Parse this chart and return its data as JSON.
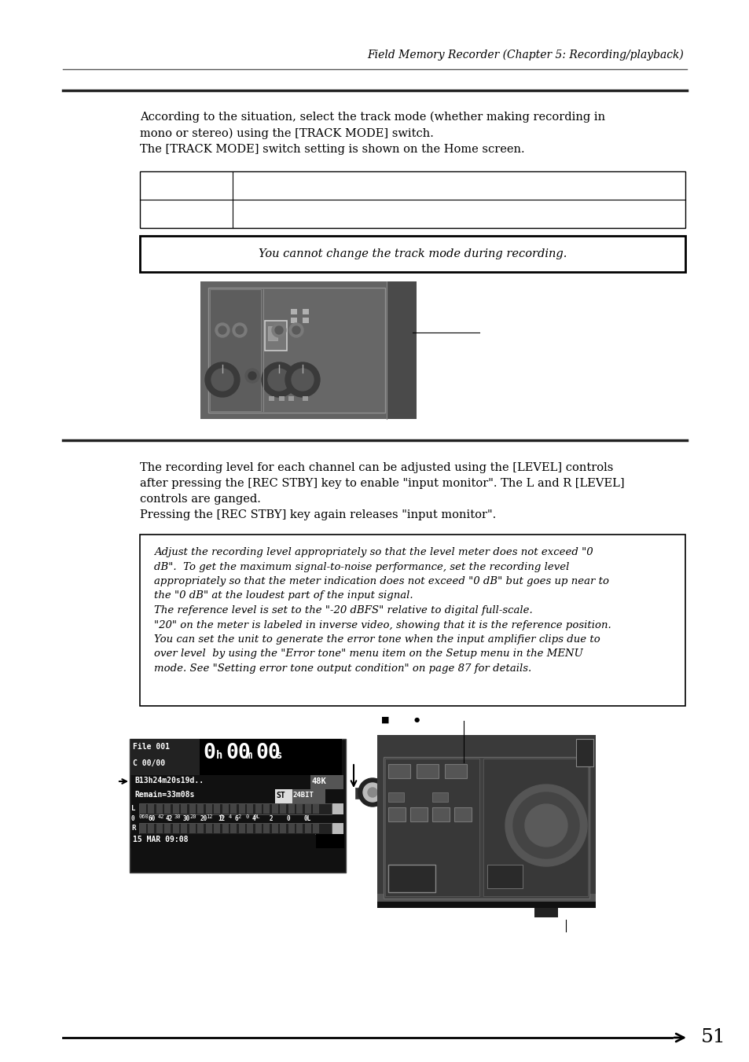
{
  "page_title": "Field Memory Recorder (Chapter 5: Recording/playback)",
  "page_number": "51",
  "section1_text1": "According to the situation, select the track mode (whether making recording in\nmono or stereo) using the [TRACK MODE] switch.\nThe [TRACK MODE] switch setting is shown on the Home screen.",
  "note_box1": "You cannot change the track mode during recording.",
  "section2_text1": "The recording level for each channel can be adjusted using the [LEVEL] controls\nafter pressing the [REC STBY] key to enable \"input monitor\". The L and R [LEVEL]\ncontrols are ganged.\nPressing the [REC STBY] key again releases \"input monitor\".",
  "note_box2_lines": [
    "Adjust the recording level appropriately so that the level meter does not exceed \"0",
    "dB\".  To get the maximum signal-to-noise performance, set the recording level",
    "appropriately so that the meter indication does not exceed \"0 dB\" but goes up near to",
    "the \"0 dB\" at the loudest part of the input signal.",
    "The reference level is set to the \"-20 dBFS\" relative to digital full-scale.",
    "\"20\" on the meter is labeled in inverse video, showing that it is the reference position.",
    "You can set the unit to generate the error tone when the input amplifier clips due to",
    "over level  by using the \"Error tone\" menu item on the Setup menu in the MENU",
    "mode. See \"Setting error tone output condition\" on page 87 for details."
  ],
  "bg_color": "#ffffff",
  "text_color": "#000000",
  "header_line_color": "#333333",
  "table_border_color": "#000000",
  "note_border_color": "#000000"
}
